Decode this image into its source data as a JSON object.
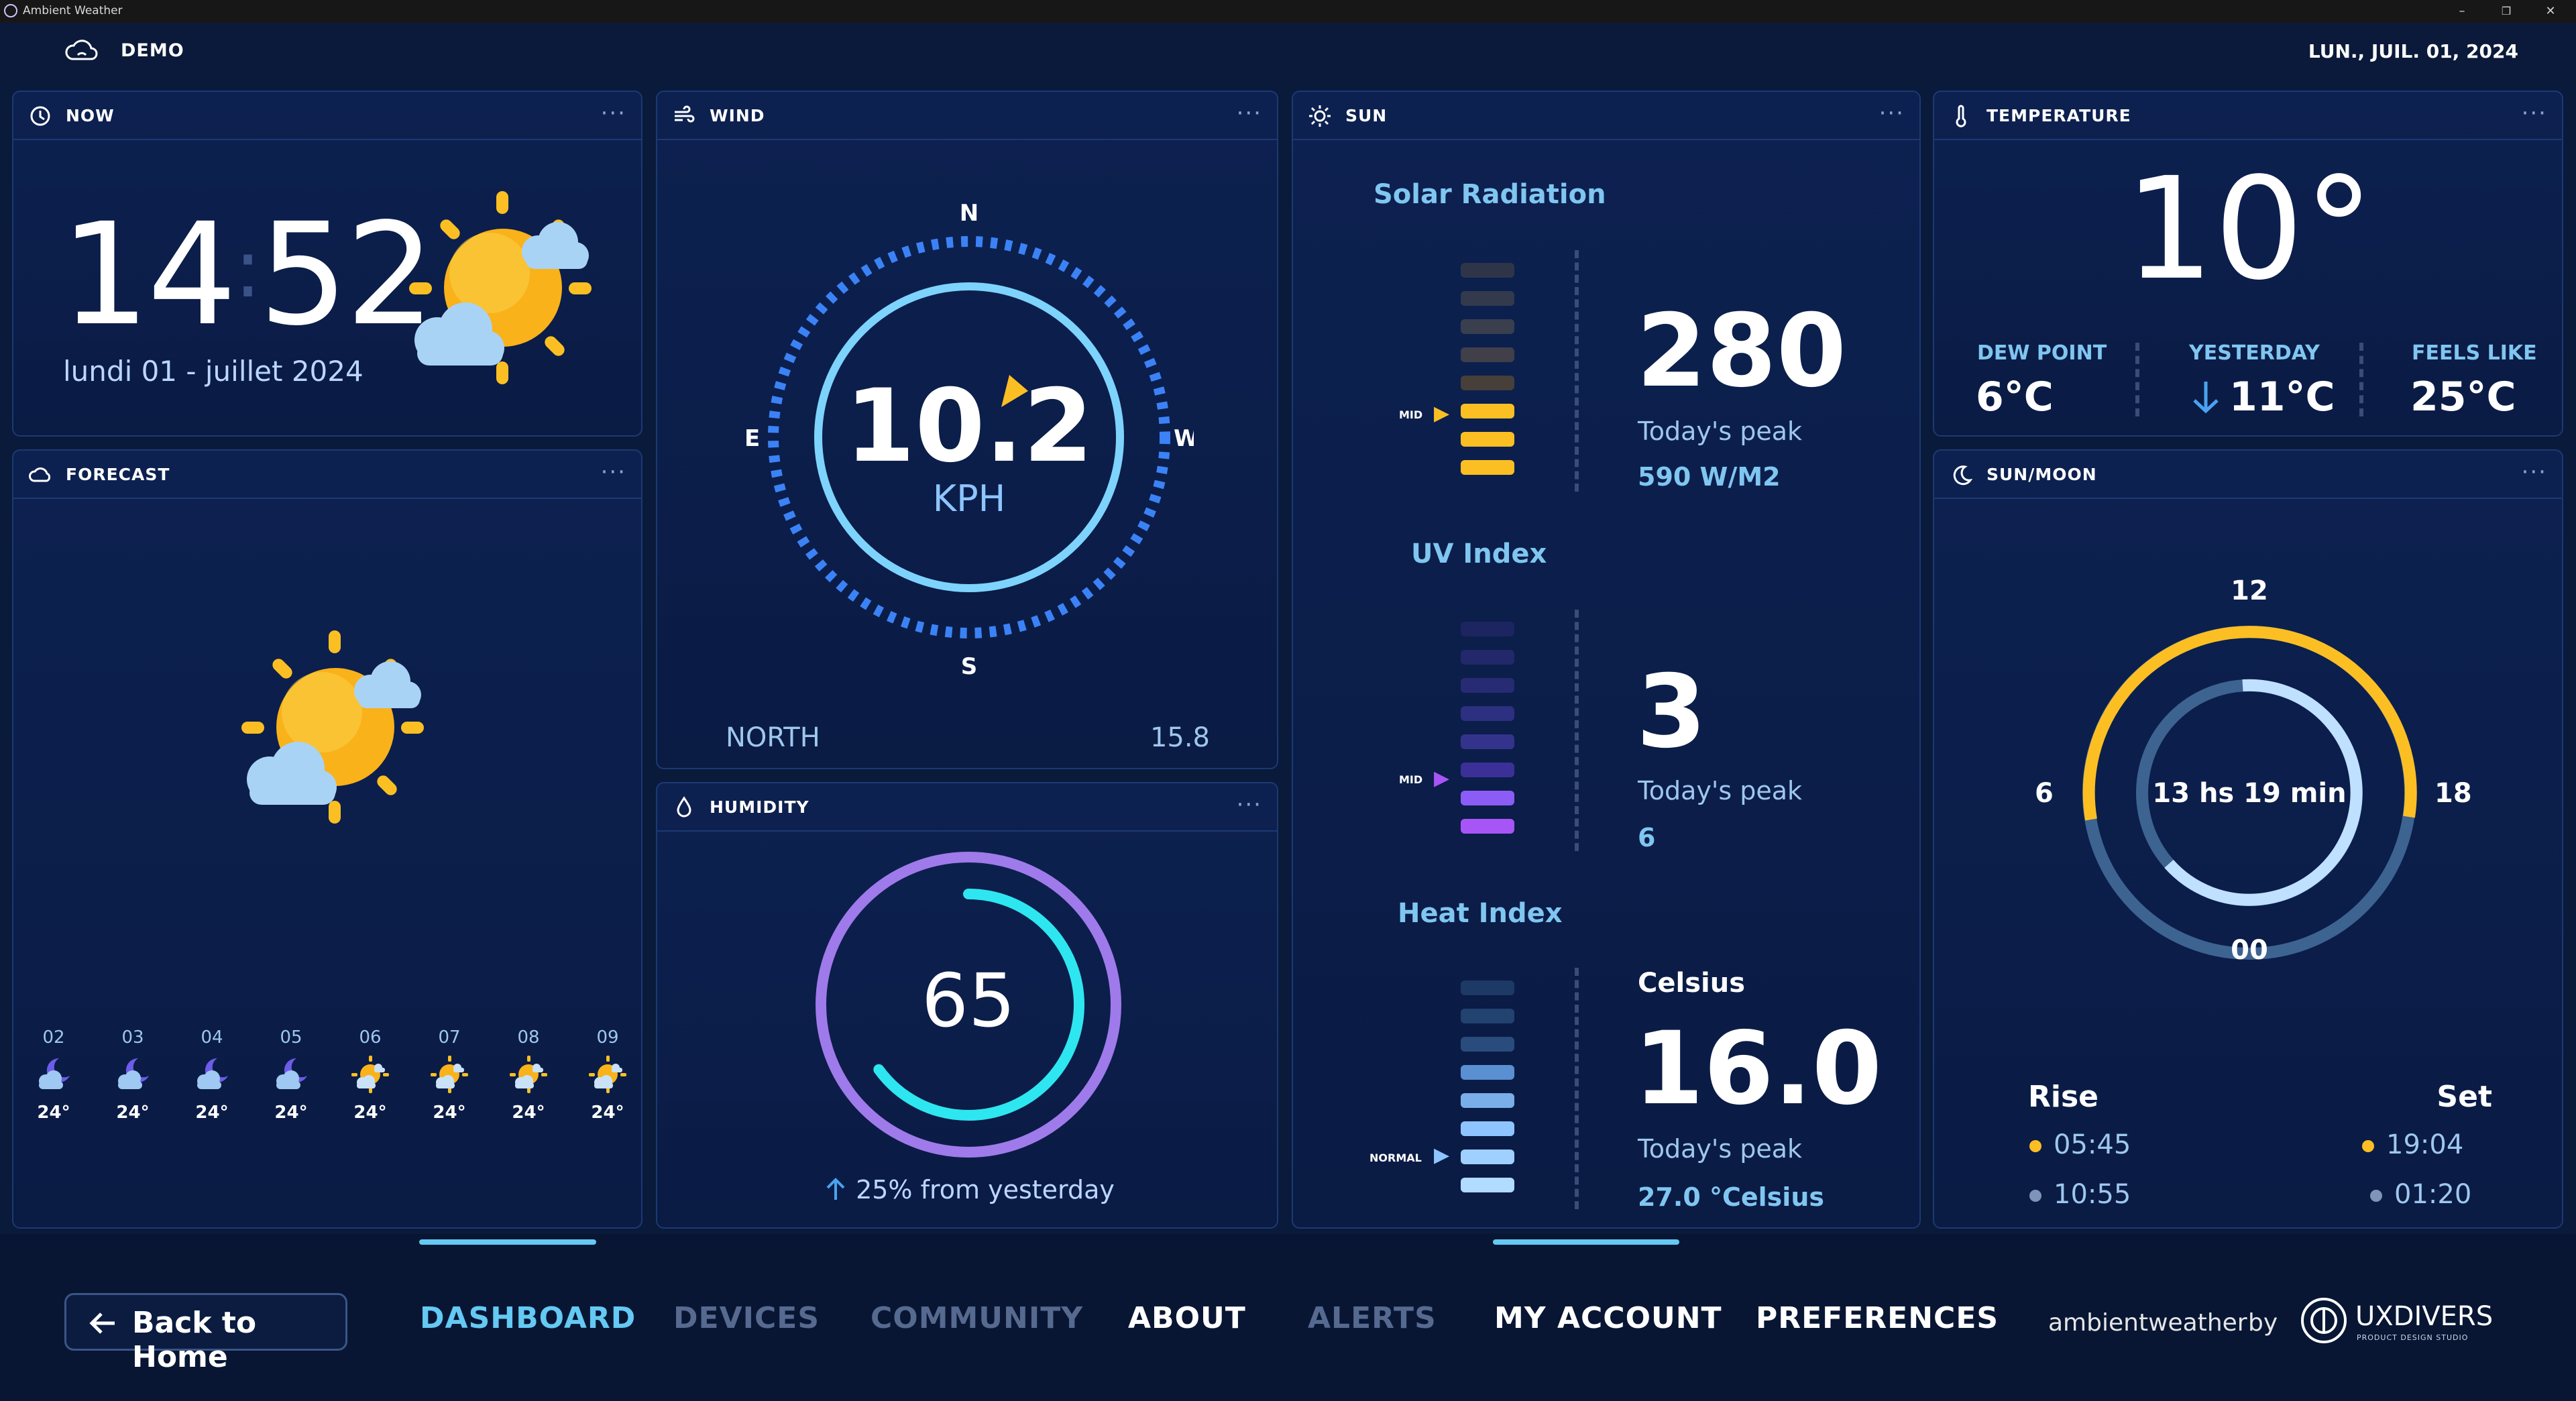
{
  "window": {
    "title": "Ambient Weather",
    "minimize": "–",
    "restore": "❐",
    "close": "✕"
  },
  "header": {
    "station": "DEMO",
    "date": "LUN., JUIL. 01, 2024"
  },
  "now": {
    "title": "NOW",
    "hour": "14",
    "sep": ":",
    "minute": "52",
    "date_text": "lundi 01 - juillet 2024"
  },
  "forecast": {
    "title": "FORECAST",
    "hours": [
      {
        "hour": "02",
        "icon": "night-cloud-icon",
        "temp": "24°"
      },
      {
        "hour": "03",
        "icon": "night-cloud-icon",
        "temp": "24°"
      },
      {
        "hour": "04",
        "icon": "night-cloud-icon",
        "temp": "24°"
      },
      {
        "hour": "05",
        "icon": "night-cloud-icon",
        "temp": "24°"
      },
      {
        "hour": "06",
        "icon": "partly-sunny-icon",
        "temp": "24°"
      },
      {
        "hour": "07",
        "icon": "partly-sunny-icon",
        "temp": "24°"
      },
      {
        "hour": "08",
        "icon": "partly-sunny-icon",
        "temp": "24°"
      },
      {
        "hour": "09",
        "icon": "partly-sunny-icon",
        "temp": "24°"
      }
    ]
  },
  "wind": {
    "title": "WIND",
    "speed": "10.2",
    "unit": "KPH",
    "compass": {
      "n": "N",
      "e": "E",
      "w": "W",
      "s": "S"
    },
    "direction": "NORTH",
    "gust": "15.8"
  },
  "humidity": {
    "title": "HUMIDITY",
    "value": "65",
    "level": 65,
    "change": "25% from yesterday"
  },
  "sun": {
    "title": "SUN",
    "solar": {
      "label": "Solar Radiation",
      "marker": "MID",
      "value": "280",
      "peak_label": "Today's peak",
      "peak": "590 W/M2"
    },
    "uv": {
      "label": "UV Index",
      "marker": "MID",
      "value": "3",
      "peak_label": "Today's peak",
      "peak": "6"
    },
    "heat": {
      "label": "Heat Index",
      "marker": "NORMAL",
      "unit": "Celsius",
      "value": "16.0",
      "peak_label": "Today's peak",
      "peak": "27.0 °Celsius"
    }
  },
  "temperature": {
    "title": "TEMPERATURE",
    "value": "10°",
    "dew_label": "DEW POINT",
    "dew": "6°C",
    "yesterday_label": "YESTERDAY",
    "yesterday": "11°C",
    "feels_label": "FEELS LIKE",
    "feels": "25°C"
  },
  "sunmoon": {
    "title": "SUN/MOON",
    "top": "12",
    "left": "6",
    "right": "18",
    "bottom": "00",
    "daylight": "13 hs 19 min",
    "rise_label": "Rise",
    "set_label": "Set",
    "sunrise": "05:45",
    "moonrise": "10:55",
    "sunset": "19:04",
    "moonset": "01:20"
  },
  "nav": {
    "back": "Back to Home",
    "items": [
      "DASHBOARD",
      "DEVICES",
      "COMMUNITY",
      "ABOUT",
      "ALERTS",
      "MY ACCOUNT",
      "PREFERENCES"
    ],
    "brand": "ambientweather",
    "by": "by",
    "partner": "UXDIVERS",
    "partner_sub": "PRODUCT DESIGN STUDIO"
  },
  "colors": {
    "accent": "#64c9f3",
    "sun": "#fbbf24",
    "purple": "#8b5cf6",
    "cyan": "#2ee6f0",
    "bg": "#0a1a3b"
  }
}
